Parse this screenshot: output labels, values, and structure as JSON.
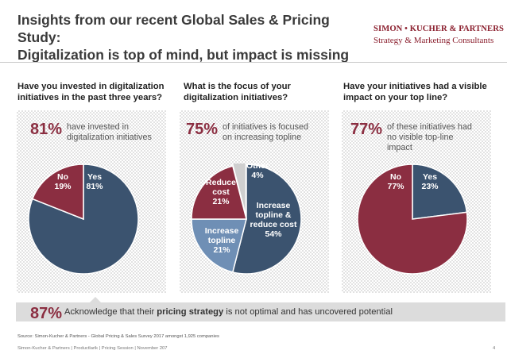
{
  "header": {
    "title_line1": "Insights from our recent Global Sales & Pricing Study:",
    "title_line2": "Digitalization is top of mind, but impact is missing",
    "logo_name": "SIMON • KUCHER & PARTNERS",
    "logo_tagline": "Strategy & Marketing Consultants"
  },
  "panels": [
    {
      "question": "Have you invested in digitalization initiatives in the past three years?",
      "stat_value": "81%",
      "stat_text": "have invested in digitalization initiatives"
    },
    {
      "question": "What is the focus of your digitalization initiatives?",
      "stat_value": "75%",
      "stat_text": "of initiatives is focused on increasing topline"
    },
    {
      "question": "Have your initiatives had a visible impact on your top line?",
      "stat_value": "77%",
      "stat_text": "of these initiatives had no visible top-line impact"
    }
  ],
  "chart_data": [
    {
      "type": "pie",
      "slices": [
        {
          "label": "Yes",
          "value": 81,
          "value_label": "81%",
          "color": "#3b536f"
        },
        {
          "label": "No",
          "value": 19,
          "value_label": "19%",
          "color": "#8b2e41"
        }
      ]
    },
    {
      "type": "pie",
      "slices": [
        {
          "label": "Increase topline & reduce cost",
          "value": 54,
          "value_label": "54%",
          "color": "#3b536f"
        },
        {
          "label": "Increase topline",
          "value": 21,
          "value_label": "21%",
          "color": "#6f8fb5"
        },
        {
          "label": "Reduce cost",
          "value": 21,
          "value_label": "21%",
          "color": "#8b2e41"
        },
        {
          "label": "Other",
          "value": 4,
          "value_label": "4%",
          "color": "#cfcfcf"
        }
      ]
    },
    {
      "type": "pie",
      "slices": [
        {
          "label": "Yes",
          "value": 23,
          "value_label": "23%",
          "color": "#3b536f"
        },
        {
          "label": "No",
          "value": 77,
          "value_label": "77%",
          "color": "#8b2e41"
        }
      ]
    }
  ],
  "summary": {
    "value": "87%",
    "text_before": "Acknowledge that their ",
    "text_bold": "pricing strategy",
    "text_after": " is not optimal and has uncovered potential"
  },
  "footer": {
    "source": "Source: Simon-Kucher & Partners - Global Pricing & Sales Survey 2017 amongst 1,925 companies",
    "left": "Simon-Kucher & Partners | Productlarik | Pricing Session | November 207",
    "page": "4"
  },
  "colors": {
    "accent_red": "#8b2e41",
    "navy": "#3b536f",
    "light_blue": "#6f8fb5",
    "grey": "#cfcfcf"
  }
}
